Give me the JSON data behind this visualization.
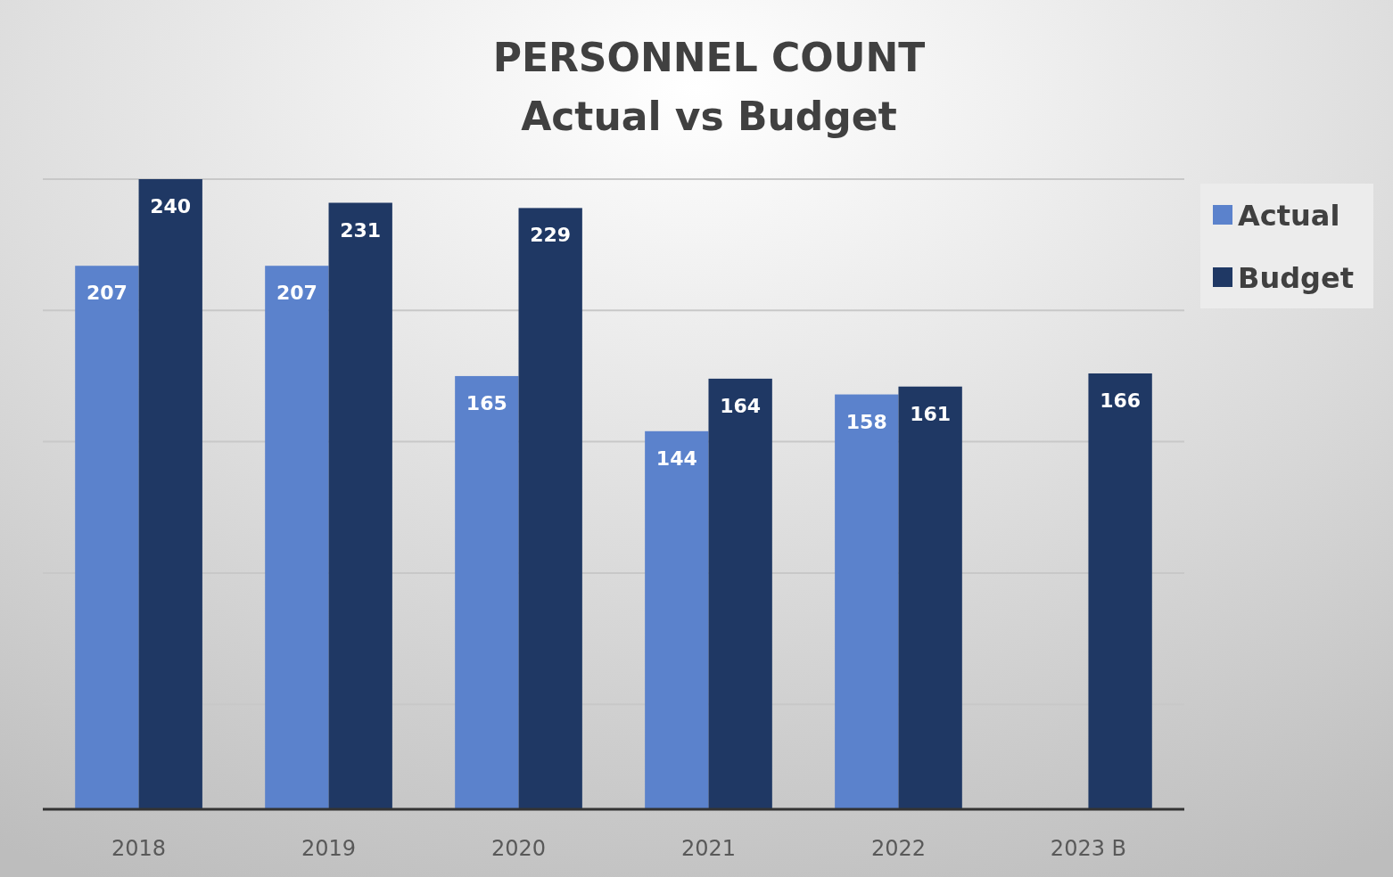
{
  "chart_data": {
    "type": "bar",
    "title": "PERSONNEL COUNT",
    "subtitle": "Actual vs Budget",
    "categories": [
      "2018",
      "2019",
      "2020",
      "2021",
      "2022",
      "2023 B"
    ],
    "series": [
      {
        "name": "Actual",
        "color": "#5b82cc",
        "values": [
          207,
          207,
          165,
          144,
          158,
          null
        ]
      },
      {
        "name": "Budget",
        "color": "#1f3864",
        "values": [
          240,
          231,
          229,
          164,
          161,
          166
        ]
      }
    ],
    "ylim": [
      0,
      240
    ],
    "yticks": [
      {
        "value": 40,
        "label": null
      },
      {
        "value": 90,
        "label": null
      },
      {
        "value": 140,
        "label": null
      },
      {
        "value": 190,
        "label": null
      },
      {
        "value": 240,
        "label": null
      }
    ],
    "tick_labels": "x",
    "grid": "y",
    "legend": "top right",
    "data_labels": true
  }
}
